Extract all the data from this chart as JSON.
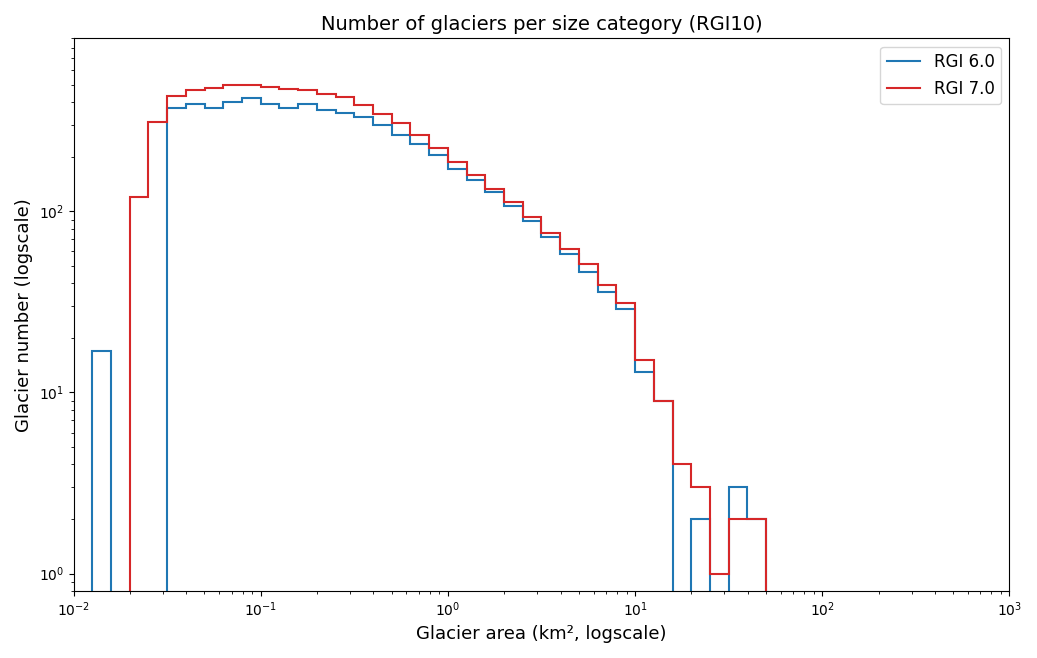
{
  "title": "Number of glaciers per size category (RGI10)",
  "xlabel": "Glacier area (km², logscale)",
  "ylabel": "Glacier number (logscale)",
  "color_rgi60": "#1f77b4",
  "color_rgi70": "#d62728",
  "label_rgi60": "RGI 6.0",
  "label_rgi70": "RGI 7.0",
  "xlim": [
    0.01,
    1000
  ],
  "ylim": [
    0.8,
    900
  ],
  "log_bin_start": -2.0,
  "log_bin_end": 2.0,
  "log_bin_step": 0.1,
  "counts_rgi60": [
    0,
    17,
    0,
    0,
    0,
    370,
    390,
    370,
    400,
    420,
    390,
    370,
    390,
    360,
    350,
    330,
    300,
    265,
    235,
    205,
    172,
    148,
    127,
    107,
    88,
    72,
    58,
    46,
    36,
    29,
    13,
    9,
    0,
    2,
    0,
    3,
    2,
    0,
    0,
    0
  ],
  "counts_rgi70": [
    0,
    0,
    0,
    120,
    310,
    430,
    465,
    480,
    495,
    495,
    485,
    475,
    465,
    445,
    425,
    385,
    345,
    305,
    265,
    222,
    188,
    158,
    132,
    112,
    93,
    76,
    62,
    51,
    39,
    31,
    15,
    9,
    4,
    3,
    1,
    2,
    2,
    0,
    0,
    0
  ]
}
